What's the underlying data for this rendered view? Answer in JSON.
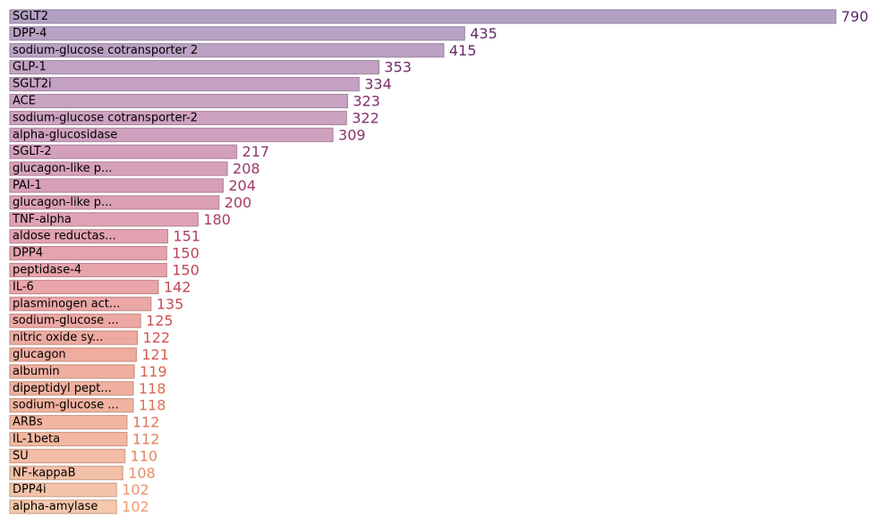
{
  "chart_data": {
    "type": "bar",
    "orientation": "horizontal",
    "categories": [
      "SGLT2",
      "DPP-4",
      "sodium-glucose cotransporter 2",
      "GLP-1",
      "SGLT2i",
      "ACE",
      "sodium-glucose cotransporter-2",
      "alpha-glucosidase",
      "SGLT-2",
      "glucagon-like p...",
      "PAI-1",
      "glucagon-like p...",
      "TNF-alpha",
      "aldose reductas...",
      "DPP4",
      "peptidase-4",
      "IL-6",
      "plasminogen act...",
      "sodium-glucose ...",
      "nitric oxide sy...",
      "glucagon",
      "albumin",
      "dipeptidyl pept...",
      "sodium-glucose ...",
      "ARBs",
      "IL-1beta",
      "SU",
      "NF-kappaB",
      "DPP4i",
      "alpha-amylase"
    ],
    "values": [
      790,
      435,
      415,
      353,
      334,
      323,
      322,
      309,
      217,
      208,
      204,
      200,
      180,
      151,
      150,
      150,
      142,
      135,
      125,
      122,
      121,
      119,
      118,
      118,
      112,
      112,
      110,
      108,
      102,
      102
    ],
    "colors": {
      "bar_gradient": [
        "#b3a0c4",
        "#c9a3c3",
        "#d89fb9",
        "#e6a3ad",
        "#efaa9f",
        "#f2b59f",
        "#f5c7ac"
      ],
      "text_gradient": [
        "#5c2a6a",
        "#7d2e6d",
        "#9c3766",
        "#bc4257",
        "#d4574e",
        "#e07856",
        "#eb9b70"
      ]
    },
    "grid": false,
    "axes_visible": false
  }
}
